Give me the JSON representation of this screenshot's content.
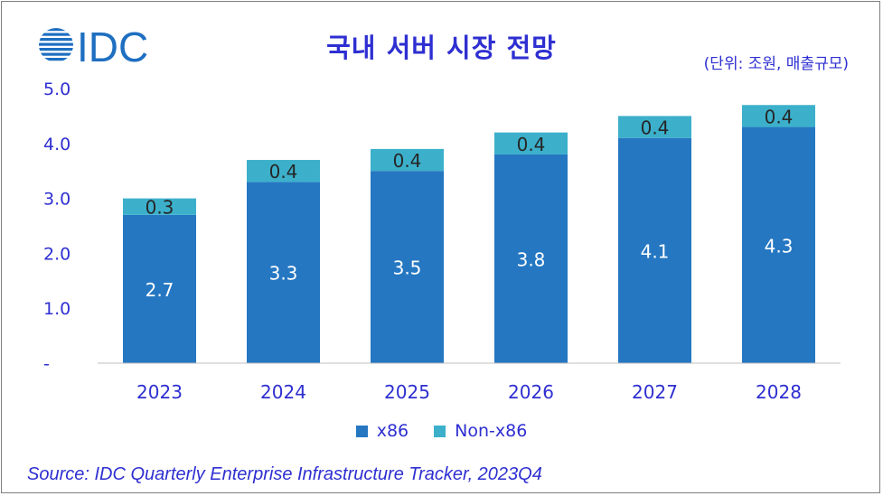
{
  "header": {
    "logo_text": "IDC",
    "title": "국내 서버 시장 전망",
    "unit": "(단위: 조원, 매출규모)"
  },
  "colors": {
    "x86": "#2577c2",
    "non_x86": "#3cb0cb",
    "axis_text": "#2e2fd1",
    "logo": "#1e6fc1"
  },
  "chart_data": {
    "type": "bar",
    "stacked": true,
    "title": "국내 서버 시장 전망",
    "xlabel": "",
    "ylabel": "",
    "categories": [
      "2023",
      "2024",
      "2025",
      "2026",
      "2027",
      "2028"
    ],
    "series": [
      {
        "name": "x86",
        "values": [
          2.7,
          3.3,
          3.5,
          3.8,
          4.1,
          4.3
        ],
        "labels": [
          "2.7",
          "3.3",
          "3.5",
          "3.8",
          "4.1",
          "4.3"
        ]
      },
      {
        "name": "Non-x86",
        "values": [
          0.3,
          0.4,
          0.4,
          0.4,
          0.4,
          0.4
        ],
        "labels": [
          "0.3",
          "0.4",
          "0.4",
          "0.4",
          "0.4",
          "0.4"
        ]
      }
    ],
    "ylim": [
      0,
      5
    ],
    "yticks": [
      0,
      1,
      2,
      3,
      4,
      5
    ],
    "ytick_labels": [
      "-",
      "1.0",
      "2.0",
      "3.0",
      "4.0",
      "5.0"
    ],
    "grid": false,
    "legend_position": "bottom"
  },
  "legend": [
    {
      "label": "x86"
    },
    {
      "label": "Non-x86"
    }
  ],
  "footer": {
    "source": "Source: IDC Quarterly Enterprise Infrastructure Tracker, 2023Q4"
  }
}
